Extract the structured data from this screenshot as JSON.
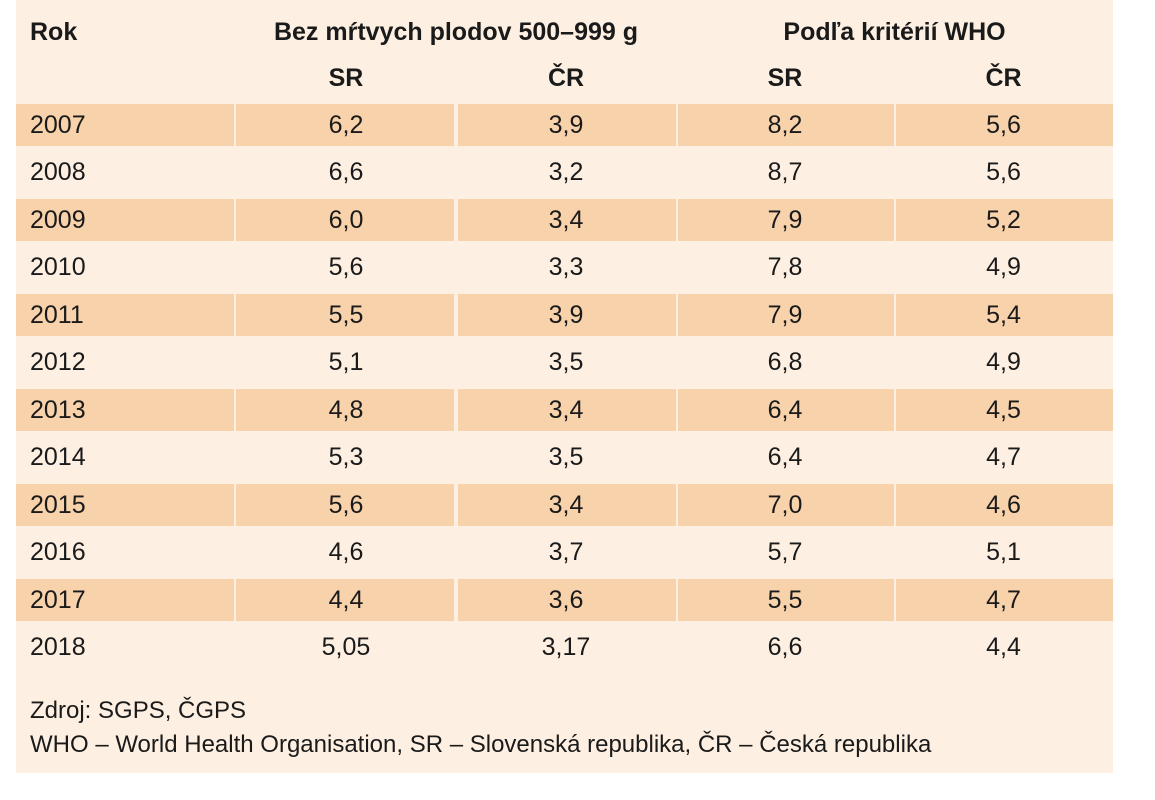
{
  "table": {
    "headers": {
      "rok": "Rok",
      "group1": "Bez mŕtvych plodov 500–999 g",
      "group2": "Podľa kritérií WHO",
      "sub": [
        "SR",
        "ČR",
        "SR",
        "ČR"
      ]
    },
    "rows": [
      {
        "year": "2007",
        "v": [
          "6,2",
          "3,9",
          "8,2",
          "5,6"
        ],
        "shaded": true
      },
      {
        "year": "2008",
        "v": [
          "6,6",
          "3,2",
          "8,7",
          "5,6"
        ],
        "shaded": false
      },
      {
        "year": "2009",
        "v": [
          "6,0",
          "3,4",
          "7,9",
          "5,2"
        ],
        "shaded": true
      },
      {
        "year": "2010",
        "v": [
          "5,6",
          "3,3",
          "7,8",
          "4,9"
        ],
        "shaded": false
      },
      {
        "year": "2011",
        "v": [
          "5,5",
          "3,9",
          "7,9",
          "5,4"
        ],
        "shaded": true
      },
      {
        "year": "2012",
        "v": [
          "5,1",
          "3,5",
          "6,8",
          "4,9"
        ],
        "shaded": false
      },
      {
        "year": "2013",
        "v": [
          "4,8",
          "3,4",
          "6,4",
          "4,5"
        ],
        "shaded": true
      },
      {
        "year": "2014",
        "v": [
          "5,3",
          "3,5",
          "6,4",
          "4,7"
        ],
        "shaded": false
      },
      {
        "year": "2015",
        "v": [
          "5,6",
          "3,4",
          "7,0",
          "4,6"
        ],
        "shaded": true
      },
      {
        "year": "2016",
        "v": [
          "4,6",
          "3,7",
          "5,7",
          "5,1"
        ],
        "shaded": false
      },
      {
        "year": "2017",
        "v": [
          "4,4",
          "3,6",
          "5,5",
          "4,7"
        ],
        "shaded": true
      },
      {
        "year": "2018",
        "v": [
          "5,05",
          "3,17",
          "6,6",
          "4,4"
        ],
        "shaded": false
      }
    ]
  },
  "footer": {
    "source": "Zdroj: SGPS, ČGPS",
    "legend": "WHO – World Health Organisation, SR – Slovenská republika, ČR – Česká republika"
  }
}
